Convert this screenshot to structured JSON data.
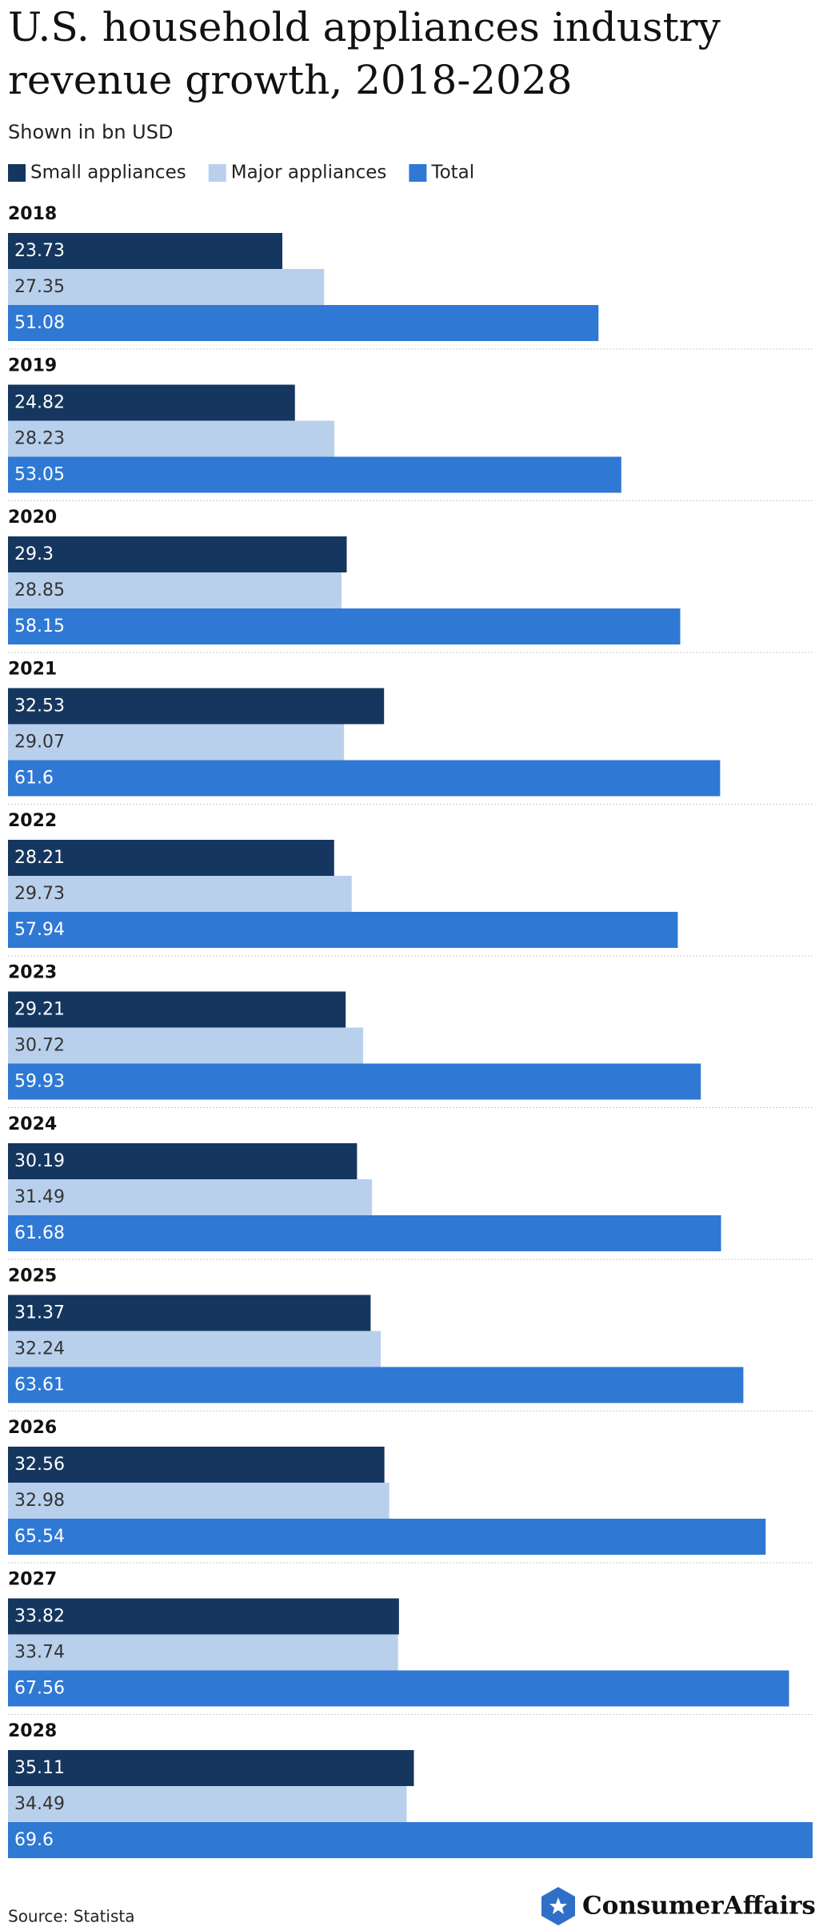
{
  "chart_data": {
    "type": "bar",
    "orientation": "horizontal",
    "title": "U.S. household appliances industry revenue growth, 2018-2028",
    "subtitle": "Shown in bn USD",
    "categories": [
      "2018",
      "2019",
      "2020",
      "2021",
      "2022",
      "2023",
      "2024",
      "2025",
      "2026",
      "2027",
      "2028"
    ],
    "series": [
      {
        "name": "Small appliances",
        "color": "#15365f",
        "values": [
          23.73,
          24.82,
          29.3,
          32.53,
          28.21,
          29.21,
          30.19,
          31.37,
          32.56,
          33.82,
          35.11
        ]
      },
      {
        "name": "Major appliances",
        "color": "#b9d0ed",
        "values": [
          27.35,
          28.23,
          28.85,
          29.07,
          29.73,
          30.72,
          31.49,
          32.24,
          32.98,
          33.74,
          34.49
        ]
      },
      {
        "name": "Total",
        "color": "#2f78d4",
        "values": [
          51.08,
          53.05,
          58.15,
          61.6,
          57.94,
          59.93,
          61.68,
          63.61,
          65.54,
          67.56,
          69.6
        ]
      }
    ],
    "source": "Source: Statista",
    "brand": "ConsumerAffairs"
  }
}
